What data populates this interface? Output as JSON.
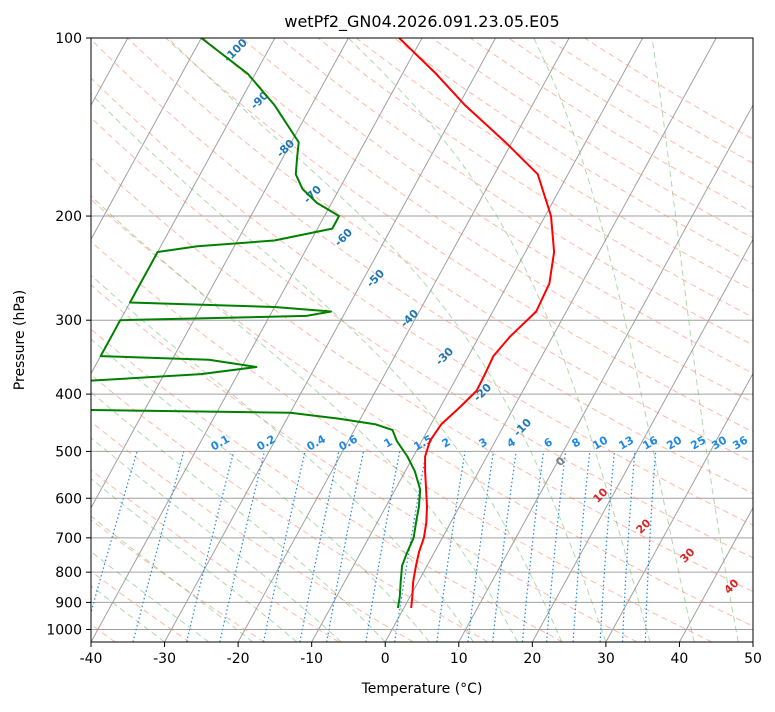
{
  "chart_data": {
    "type": "line",
    "title": "wetPf2_GN04.2026.091.23.05.E05",
    "xlabel": "Temperature (°C)",
    "ylabel": "Pressure (hPa)",
    "xlim": [
      -40,
      50
    ],
    "ylim": [
      1050,
      100
    ],
    "y_scale": "log",
    "skew": 45,
    "grid": true,
    "x_ticks": [
      "-40",
      "-30",
      "-20",
      "-10",
      "0",
      "10",
      "20",
      "30",
      "40",
      "50"
    ],
    "y_ticks": [
      "100",
      "200",
      "300",
      "400",
      "500",
      "600",
      "700",
      "800",
      "900",
      "1000"
    ],
    "colors": {
      "temperature": "#ff0000",
      "dewpoint": "#008000",
      "isotherm": "#a0a0a0",
      "dry_adiabat": "#ff8060",
      "moist_adiabat": "#5cb85c",
      "mixing_ratio": "#1e88e5",
      "dry_label": "#1f77b4",
      "moist_label": "#d62728",
      "background_curve": "#d2b48c"
    },
    "dry_adiabat_labels": [
      "-100",
      "-90",
      "-80",
      "-70",
      "-60",
      "-50",
      "-40",
      "-30",
      "-20",
      "-10"
    ],
    "mixing_ratio_labels": [
      "0.1",
      "0.2",
      "0.4",
      "0.6",
      "1",
      "1.5",
      "2",
      "3",
      "4",
      "6",
      "8",
      "10",
      "13",
      "16",
      "20",
      "25",
      "30",
      "36"
    ],
    "moist_adiabat_labels": [
      "0",
      "10",
      "20",
      "30",
      "40"
    ],
    "series": [
      {
        "name": "Temperature",
        "p": [
          920,
          880,
          830,
          780,
          740,
          700,
          660,
          620,
          580,
          540,
          510,
          480,
          450,
          420,
          395,
          370,
          345,
          320,
          290,
          260,
          230,
          200,
          170,
          150,
          130,
          115,
          100
        ],
        "t": [
          1,
          0.3,
          -0.7,
          -1.5,
          -2.1,
          -2.5,
          -3.3,
          -4.4,
          -5.8,
          -7.3,
          -8.4,
          -8.9,
          -8.6,
          -7.3,
          -6.3,
          -6.4,
          -6.6,
          -5.8,
          -4.1,
          -4.4,
          -6.1,
          -9.2,
          -14.1,
          -20.9,
          -29.1,
          -35.4,
          -43.1
        ]
      },
      {
        "name": "Dewpoint",
        "p": [
          920,
          880,
          830,
          780,
          740,
          700,
          660,
          620,
          580,
          540,
          510,
          480,
          460,
          450,
          440,
          430,
          425,
          400,
          380,
          370,
          360,
          350,
          345,
          320,
          300,
          295,
          290,
          285,
          280,
          275,
          260,
          240,
          230,
          225,
          220,
          210,
          200,
          190,
          180,
          170,
          160,
          150,
          130,
          115,
          100
        ],
        "t": [
          -0.8,
          -1.4,
          -2.4,
          -3.4,
          -3.7,
          -3.9,
          -4.7,
          -5.5,
          -6.6,
          -8.7,
          -10.8,
          -13.4,
          -14.8,
          -17.5,
          -23,
          -30,
          -60,
          -60,
          -60,
          -45,
          -38,
          -45,
          -60,
          -60,
          -60,
          -35,
          -32,
          -40,
          -60,
          -60,
          -60,
          -60,
          -60,
          -55,
          -45,
          -38,
          -38,
          -42,
          -45,
          -47,
          -48,
          -49,
          -55,
          -61,
          -70
        ]
      }
    ]
  }
}
